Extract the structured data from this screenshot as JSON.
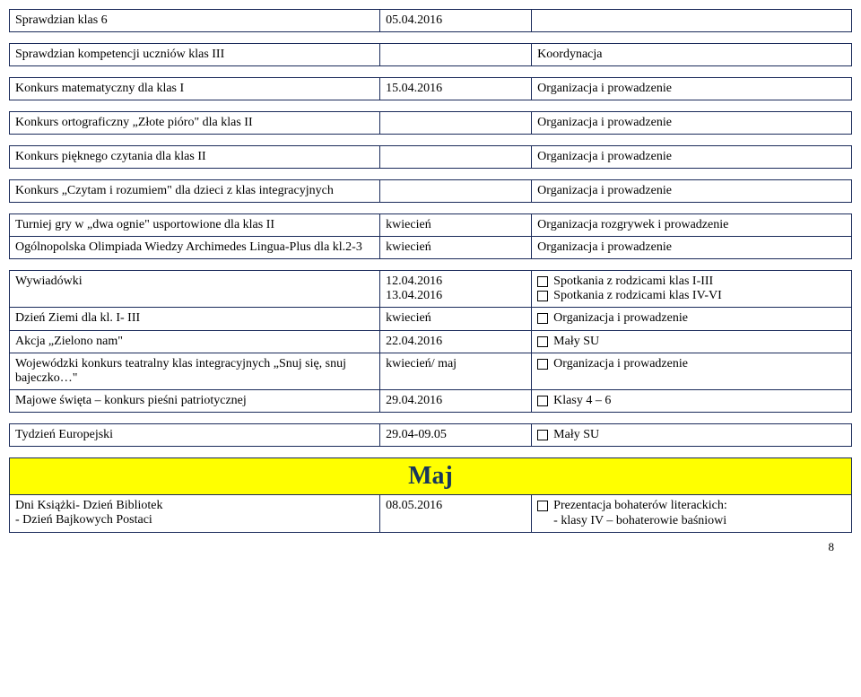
{
  "colors": {
    "border": "#1a2a5a",
    "highlight_bg": "#ffff00",
    "highlight_text": "#16365d",
    "page_bg": "#ffffff"
  },
  "rows": [
    {
      "c1": "Sprawdzian klas 6",
      "c2": "05.04.2016",
      "c3": ""
    },
    {
      "spacer": true
    },
    {
      "c1": "Sprawdzian kompetencji uczniów klas III",
      "c2": "",
      "c3": "Koordynacja"
    },
    {
      "spacer": true
    },
    {
      "c1": "Konkurs matematyczny dla klas I",
      "c2": "15.04.2016",
      "c3": "Organizacja i prowadzenie"
    },
    {
      "spacer": true
    },
    {
      "c1": "Konkurs ortograficzny „Złote pióro\" dla klas II",
      "c2": "",
      "c3": "Organizacja i prowadzenie"
    },
    {
      "spacer": true
    },
    {
      "c1": "Konkurs pięknego czytania dla klas II",
      "c2": "",
      "c3": "Organizacja i prowadzenie"
    },
    {
      "spacer": true
    },
    {
      "c1": "Konkurs „Czytam i rozumiem\" dla dzieci z klas integracyjnych",
      "c2": "",
      "c3": "Organizacja i prowadzenie"
    },
    {
      "spacer": true
    },
    {
      "c1": "Turniej gry w „dwa ognie\" usportowione dla klas II",
      "c2": "kwiecień",
      "c3": "Organizacja rozgrywek i prowadzenie",
      "no_bottom_1": true
    },
    {
      "c1": "Ogólnopolska Olimpiada Wiedzy Archimedes Lingua-Plus dla kl.2-3",
      "c2": "kwiecień",
      "c3": "Organizacja i prowadzenie",
      "no_top_1": true
    },
    {
      "spacer": true
    },
    {
      "c1": "Wywiadówki",
      "c2_lines": [
        "12.04.2016",
        "13.04.2016"
      ],
      "c3_icons": [
        "Spotkania z rodzicami klas I-III",
        "Spotkania z rodzicami klas IV-VI"
      ]
    },
    {
      "c1": "Dzień Ziemi dla kl. I- III",
      "c2": "kwiecień",
      "c3_icons": [
        "Organizacja i prowadzenie"
      ]
    },
    {
      "c1": "Akcja „Zielono nam\"",
      "c2": "22.04.2016",
      "c3_icons": [
        "Mały SU"
      ]
    },
    {
      "c1": "Wojewódzki konkurs teatralny klas integracyjnych „Snuj się, snuj bajeczko…\"",
      "c2": "kwiecień/ maj",
      "c3_icons": [
        "Organizacja i prowadzenie"
      ]
    },
    {
      "c1": "Majowe święta – konkurs pieśni patriotycznej",
      "c2": "29.04.2016",
      "c3_icons": [
        "Klasy 4 – 6"
      ]
    },
    {
      "spacer": true
    },
    {
      "c1": "Tydzień Europejski",
      "c2": "29.04-09.05",
      "c3_icons": [
        "Mały SU"
      ]
    },
    {
      "spacer": true
    },
    {
      "highlight": "Maj"
    },
    {
      "c1_lines": [
        "Dni Książki- Dzień Bibliotek",
        "- Dzień Bajkowych Postaci"
      ],
      "c2": "08.05.2016",
      "c3_icons_lines": [
        {
          "icon": true,
          "text": "Prezentacja bohaterów literackich:"
        },
        {
          "icon": false,
          "text": "- klasy IV – bohaterowie baśniowi"
        }
      ]
    }
  ],
  "page_number": "8"
}
